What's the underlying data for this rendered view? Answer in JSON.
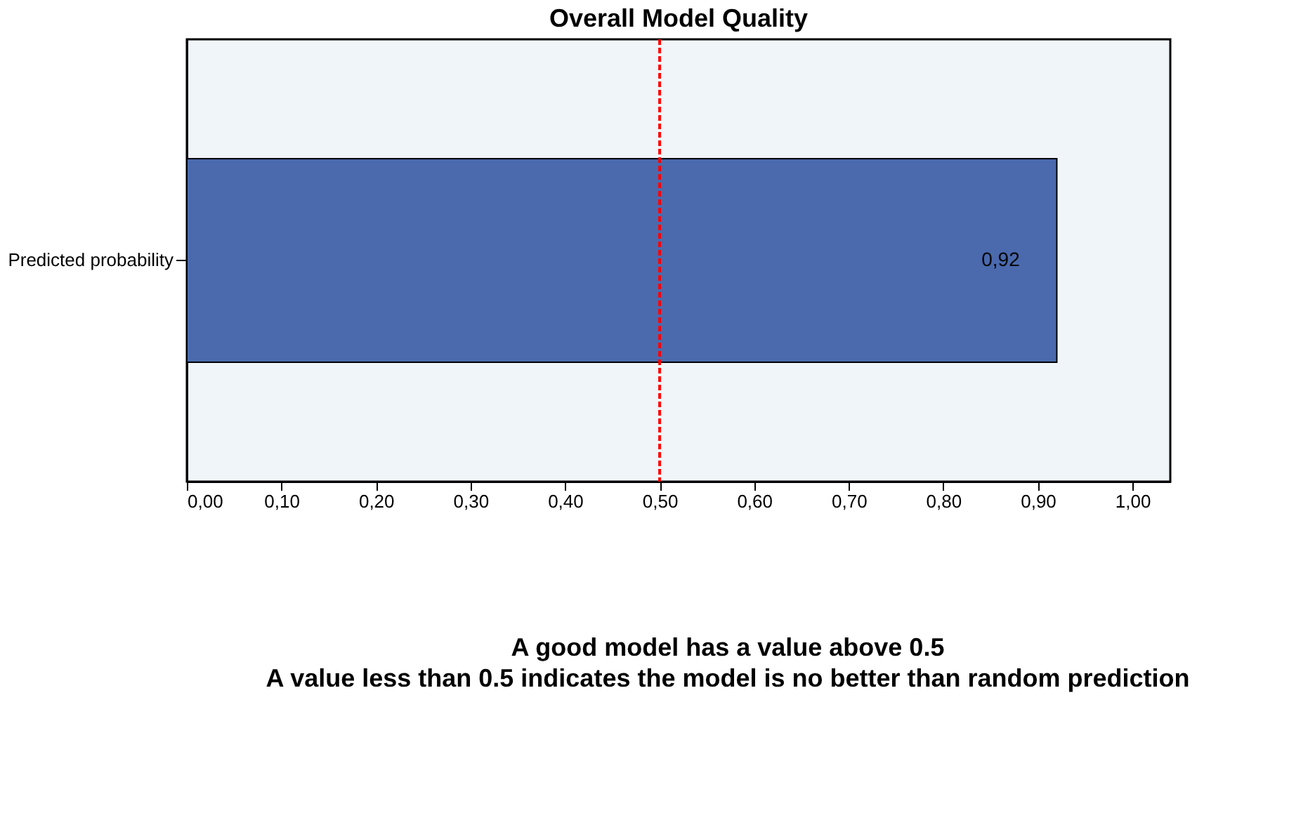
{
  "chart_data": {
    "type": "bar",
    "orientation": "horizontal",
    "title": "Overall Model Quality",
    "categories": [
      "Predicted probability"
    ],
    "values": [
      0.92
    ],
    "value_labels": [
      "0,92"
    ],
    "color": "#4a6aad",
    "xlim": [
      0,
      1.04
    ],
    "xticks": [
      {
        "value": 0,
        "label": "0,00"
      },
      {
        "value": 0.1,
        "label": "0,10"
      },
      {
        "value": 0.2,
        "label": "0,20"
      },
      {
        "value": 0.3,
        "label": "0,30"
      },
      {
        "value": 0.4,
        "label": "0,40"
      },
      {
        "value": 0.5,
        "label": "0,50"
      },
      {
        "value": 0.6,
        "label": "0,60"
      },
      {
        "value": 0.7,
        "label": "0,70"
      },
      {
        "value": 0.8,
        "label": "0,80"
      },
      {
        "value": 0.9,
        "label": "0,90"
      },
      {
        "value": 1.0,
        "label": "1,00"
      }
    ],
    "ref_lines": [
      {
        "axis": "x",
        "value": 0.5,
        "color": "#ff0000",
        "line_style": "dashed"
      }
    ],
    "grid": false,
    "annotations": [
      "A good model has a value above 0.5",
      "A value less than 0.5 indicates the model is no better than random prediction"
    ]
  }
}
